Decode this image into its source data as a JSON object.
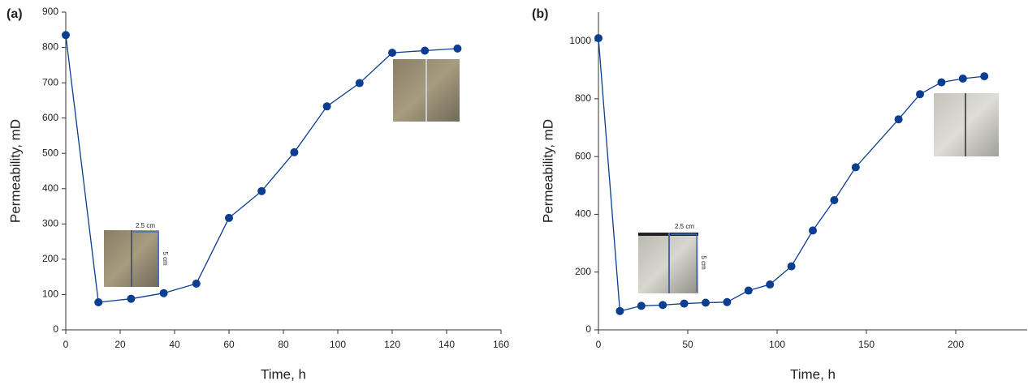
{
  "chart_data": [
    {
      "type": "line",
      "title": "(a)",
      "x_label": "Time, h",
      "y_label": "Permeability, mD",
      "x": [
        0,
        12,
        24,
        36,
        48,
        60,
        72,
        84,
        96,
        108,
        120,
        132,
        144
      ],
      "values": [
        835,
        78,
        88,
        104,
        131,
        317,
        393,
        503,
        633,
        699,
        785,
        791,
        797
      ],
      "color": "#0b3d91",
      "xlim": [
        0,
        160
      ],
      "xticks": [
        0,
        20,
        40,
        60,
        80,
        100,
        120,
        140,
        160
      ],
      "ylim": [
        0,
        900
      ],
      "yticks": [
        0,
        100,
        200,
        300,
        400,
        500,
        600,
        700,
        800,
        900
      ],
      "annotations": [
        "2.5 cm",
        "5 cm"
      ]
    },
    {
      "type": "line",
      "title": "(b)",
      "x_label": "Time, h",
      "y_label": "Permeability, mD",
      "x": [
        0,
        12,
        24,
        36,
        48,
        60,
        72,
        84,
        96,
        108,
        120,
        132,
        144,
        168,
        180,
        192,
        204,
        216
      ],
      "values": [
        1010,
        65,
        83,
        86,
        91,
        94,
        96,
        136,
        157,
        220,
        344,
        449,
        563,
        729,
        816,
        857,
        870,
        878
      ],
      "color": "#0b3d91",
      "xlim": [
        0,
        240
      ],
      "xticks": [
        0,
        50,
        100,
        150,
        200
      ],
      "ylim": [
        0,
        1100
      ],
      "yticks": [
        0,
        200,
        400,
        600,
        800,
        1000
      ],
      "annotations": [
        "2.5 cm",
        "5 cm"
      ]
    }
  ]
}
